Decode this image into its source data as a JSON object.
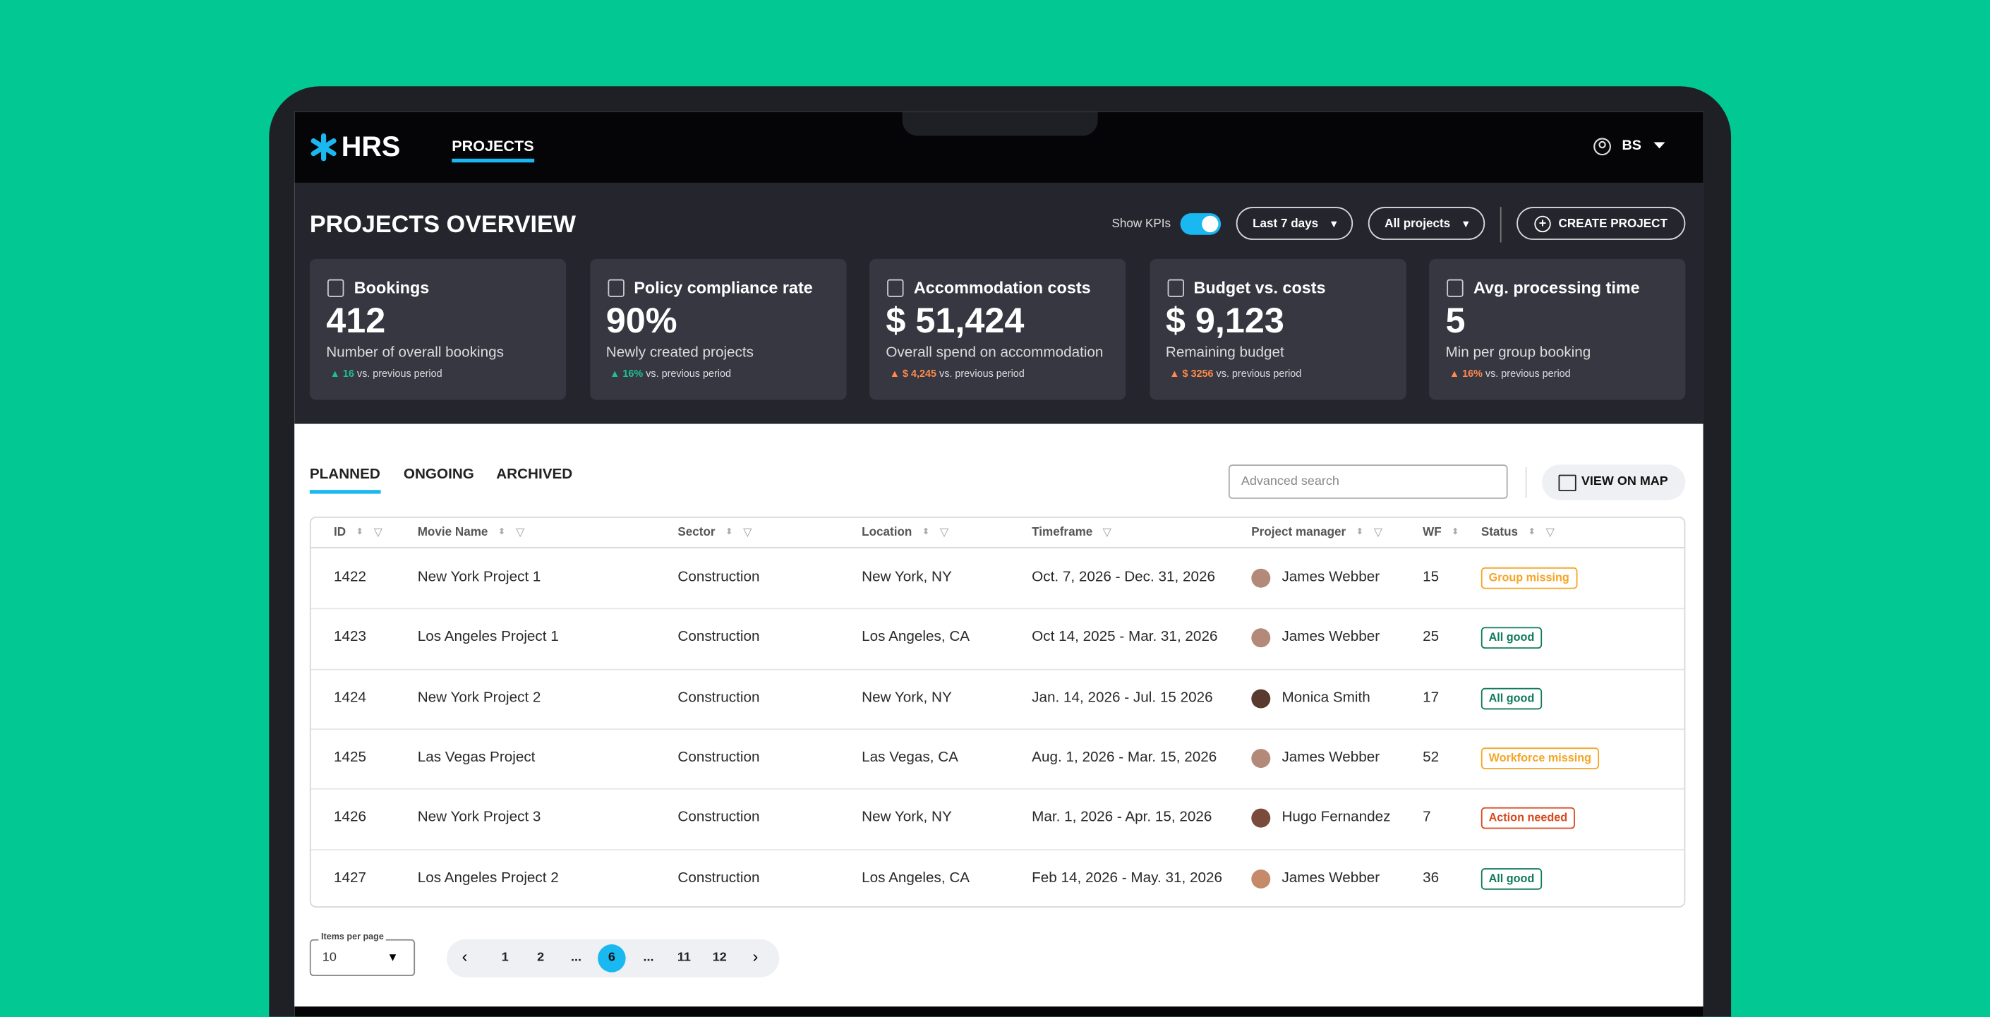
{
  "nav": {
    "brand": "HRS",
    "link": "PROJECTS",
    "user": "BS"
  },
  "header": {
    "title": "PROJECTS OVERVIEW",
    "toggle_label": "Show KPIs",
    "period": "Last 7 days",
    "scope": "All projects",
    "create": "CREATE PROJECT"
  },
  "kpis": [
    {
      "title": "Bookings",
      "value": "412",
      "caption": "Number of overall bookings",
      "trend": "16",
      "note": "vs. previous period",
      "color": "#1fc08e"
    },
    {
      "title": "Policy compliance rate",
      "value": "90%",
      "caption": "Newly created projects",
      "trend": "16%",
      "note": "vs. previous period",
      "color": "#1fc08e"
    },
    {
      "title": "Accommodation costs",
      "value": "$ 51,424",
      "caption": "Overall spend on accommodation",
      "trend": "$ 4,245",
      "note": "vs. previous period",
      "color": "#ff8a4c"
    },
    {
      "title": "Budget vs. costs",
      "value": "$ 9,123",
      "caption": "Remaining budget",
      "trend": "$ 3256",
      "note": "vs. previous period",
      "color": "#ff8a4c"
    },
    {
      "title": "Avg. processing time",
      "value": "5",
      "caption": "Min per group booking",
      "trend": "16%",
      "note": "vs. previous period",
      "color": "#ff8a4c"
    }
  ],
  "tabs": [
    "PLANNED",
    "ONGOING",
    "ARCHIVED"
  ],
  "search_placeholder": "Advanced search",
  "map_button": "VIEW ON MAP",
  "table": {
    "columns": [
      "ID",
      "Movie Name",
      "Sector",
      "Location",
      "Timeframe",
      "Project manager",
      "WF",
      "Status"
    ],
    "rows": [
      [
        1422,
        "New York Project 1",
        "Construction",
        "New York, NY",
        "Oct. 7, 2026 - Dec. 31, 2026",
        "James Webber",
        15,
        "Group missing"
      ],
      [
        1423,
        "Los Angeles Project 1",
        "Construction",
        "Los Angeles, CA",
        "Oct 14, 2025 - Mar. 31, 2026",
        "James Webber",
        25,
        "All good"
      ],
      [
        1424,
        "New York Project 2",
        "Construction",
        "New York, NY",
        "Jan. 14, 2026 - Jul. 15 2026",
        "Monica Smith",
        17,
        "All good"
      ],
      [
        1425,
        "Las Vegas Project",
        "Construction",
        "Las Vegas, CA",
        "Aug. 1, 2026 - Mar. 15, 2026",
        "James Webber",
        52,
        "Workforce missing"
      ],
      [
        1426,
        "New York Project 3",
        "Construction",
        "New York, NY",
        "Mar. 1, 2026 - Apr. 15, 2026",
        "Hugo Fernandez",
        7,
        "Action needed"
      ],
      [
        1427,
        "Los Angeles Project 2",
        "Construction",
        "Los Angeles, CA",
        "Feb 14, 2026 - May. 31, 2026",
        "James Webber",
        36,
        "All good"
      ]
    ],
    "status_colors": [
      "#f5a524",
      "#0f7a5c",
      "#0f7a5c",
      "#f5a524",
      "#d9481c",
      "#0f7a5c"
    ]
  },
  "pagination": {
    "items_label": "Items per page",
    "items_value": "10",
    "pages": [
      "1",
      "2",
      "...",
      "6",
      "...",
      "11",
      "12"
    ],
    "active": 3
  }
}
